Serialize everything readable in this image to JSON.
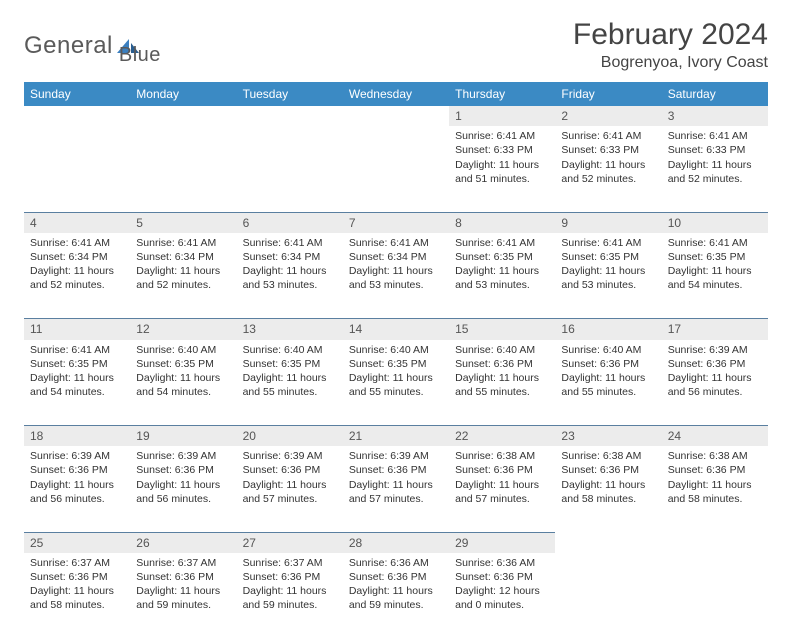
{
  "logo": {
    "text1": "General",
    "text2": "Blue"
  },
  "title": "February 2024",
  "location": "Bogrenyoa, Ivory Coast",
  "colors": {
    "header_bg": "#3b8ac4",
    "daynum_bg": "#ececec",
    "row_border": "#5a7fa0",
    "logo_blue": "#3b7fbf",
    "text": "#333333"
  },
  "weekdays": [
    "Sunday",
    "Monday",
    "Tuesday",
    "Wednesday",
    "Thursday",
    "Friday",
    "Saturday"
  ],
  "weeks": [
    {
      "days": [
        null,
        null,
        null,
        null,
        {
          "n": "1",
          "sunrise": "Sunrise: 6:41 AM",
          "sunset": "Sunset: 6:33 PM",
          "daylight1": "Daylight: 11 hours",
          "daylight2": "and 51 minutes."
        },
        {
          "n": "2",
          "sunrise": "Sunrise: 6:41 AM",
          "sunset": "Sunset: 6:33 PM",
          "daylight1": "Daylight: 11 hours",
          "daylight2": "and 52 minutes."
        },
        {
          "n": "3",
          "sunrise": "Sunrise: 6:41 AM",
          "sunset": "Sunset: 6:33 PM",
          "daylight1": "Daylight: 11 hours",
          "daylight2": "and 52 minutes."
        }
      ]
    },
    {
      "days": [
        {
          "n": "4",
          "sunrise": "Sunrise: 6:41 AM",
          "sunset": "Sunset: 6:34 PM",
          "daylight1": "Daylight: 11 hours",
          "daylight2": "and 52 minutes."
        },
        {
          "n": "5",
          "sunrise": "Sunrise: 6:41 AM",
          "sunset": "Sunset: 6:34 PM",
          "daylight1": "Daylight: 11 hours",
          "daylight2": "and 52 minutes."
        },
        {
          "n": "6",
          "sunrise": "Sunrise: 6:41 AM",
          "sunset": "Sunset: 6:34 PM",
          "daylight1": "Daylight: 11 hours",
          "daylight2": "and 53 minutes."
        },
        {
          "n": "7",
          "sunrise": "Sunrise: 6:41 AM",
          "sunset": "Sunset: 6:34 PM",
          "daylight1": "Daylight: 11 hours",
          "daylight2": "and 53 minutes."
        },
        {
          "n": "8",
          "sunrise": "Sunrise: 6:41 AM",
          "sunset": "Sunset: 6:35 PM",
          "daylight1": "Daylight: 11 hours",
          "daylight2": "and 53 minutes."
        },
        {
          "n": "9",
          "sunrise": "Sunrise: 6:41 AM",
          "sunset": "Sunset: 6:35 PM",
          "daylight1": "Daylight: 11 hours",
          "daylight2": "and 53 minutes."
        },
        {
          "n": "10",
          "sunrise": "Sunrise: 6:41 AM",
          "sunset": "Sunset: 6:35 PM",
          "daylight1": "Daylight: 11 hours",
          "daylight2": "and 54 minutes."
        }
      ]
    },
    {
      "days": [
        {
          "n": "11",
          "sunrise": "Sunrise: 6:41 AM",
          "sunset": "Sunset: 6:35 PM",
          "daylight1": "Daylight: 11 hours",
          "daylight2": "and 54 minutes."
        },
        {
          "n": "12",
          "sunrise": "Sunrise: 6:40 AM",
          "sunset": "Sunset: 6:35 PM",
          "daylight1": "Daylight: 11 hours",
          "daylight2": "and 54 minutes."
        },
        {
          "n": "13",
          "sunrise": "Sunrise: 6:40 AM",
          "sunset": "Sunset: 6:35 PM",
          "daylight1": "Daylight: 11 hours",
          "daylight2": "and 55 minutes."
        },
        {
          "n": "14",
          "sunrise": "Sunrise: 6:40 AM",
          "sunset": "Sunset: 6:35 PM",
          "daylight1": "Daylight: 11 hours",
          "daylight2": "and 55 minutes."
        },
        {
          "n": "15",
          "sunrise": "Sunrise: 6:40 AM",
          "sunset": "Sunset: 6:36 PM",
          "daylight1": "Daylight: 11 hours",
          "daylight2": "and 55 minutes."
        },
        {
          "n": "16",
          "sunrise": "Sunrise: 6:40 AM",
          "sunset": "Sunset: 6:36 PM",
          "daylight1": "Daylight: 11 hours",
          "daylight2": "and 55 minutes."
        },
        {
          "n": "17",
          "sunrise": "Sunrise: 6:39 AM",
          "sunset": "Sunset: 6:36 PM",
          "daylight1": "Daylight: 11 hours",
          "daylight2": "and 56 minutes."
        }
      ]
    },
    {
      "days": [
        {
          "n": "18",
          "sunrise": "Sunrise: 6:39 AM",
          "sunset": "Sunset: 6:36 PM",
          "daylight1": "Daylight: 11 hours",
          "daylight2": "and 56 minutes."
        },
        {
          "n": "19",
          "sunrise": "Sunrise: 6:39 AM",
          "sunset": "Sunset: 6:36 PM",
          "daylight1": "Daylight: 11 hours",
          "daylight2": "and 56 minutes."
        },
        {
          "n": "20",
          "sunrise": "Sunrise: 6:39 AM",
          "sunset": "Sunset: 6:36 PM",
          "daylight1": "Daylight: 11 hours",
          "daylight2": "and 57 minutes."
        },
        {
          "n": "21",
          "sunrise": "Sunrise: 6:39 AM",
          "sunset": "Sunset: 6:36 PM",
          "daylight1": "Daylight: 11 hours",
          "daylight2": "and 57 minutes."
        },
        {
          "n": "22",
          "sunrise": "Sunrise: 6:38 AM",
          "sunset": "Sunset: 6:36 PM",
          "daylight1": "Daylight: 11 hours",
          "daylight2": "and 57 minutes."
        },
        {
          "n": "23",
          "sunrise": "Sunrise: 6:38 AM",
          "sunset": "Sunset: 6:36 PM",
          "daylight1": "Daylight: 11 hours",
          "daylight2": "and 58 minutes."
        },
        {
          "n": "24",
          "sunrise": "Sunrise: 6:38 AM",
          "sunset": "Sunset: 6:36 PM",
          "daylight1": "Daylight: 11 hours",
          "daylight2": "and 58 minutes."
        }
      ]
    },
    {
      "days": [
        {
          "n": "25",
          "sunrise": "Sunrise: 6:37 AM",
          "sunset": "Sunset: 6:36 PM",
          "daylight1": "Daylight: 11 hours",
          "daylight2": "and 58 minutes."
        },
        {
          "n": "26",
          "sunrise": "Sunrise: 6:37 AM",
          "sunset": "Sunset: 6:36 PM",
          "daylight1": "Daylight: 11 hours",
          "daylight2": "and 59 minutes."
        },
        {
          "n": "27",
          "sunrise": "Sunrise: 6:37 AM",
          "sunset": "Sunset: 6:36 PM",
          "daylight1": "Daylight: 11 hours",
          "daylight2": "and 59 minutes."
        },
        {
          "n": "28",
          "sunrise": "Sunrise: 6:36 AM",
          "sunset": "Sunset: 6:36 PM",
          "daylight1": "Daylight: 11 hours",
          "daylight2": "and 59 minutes."
        },
        {
          "n": "29",
          "sunrise": "Sunrise: 6:36 AM",
          "sunset": "Sunset: 6:36 PM",
          "daylight1": "Daylight: 12 hours",
          "daylight2": "and 0 minutes."
        },
        null,
        null
      ]
    }
  ]
}
